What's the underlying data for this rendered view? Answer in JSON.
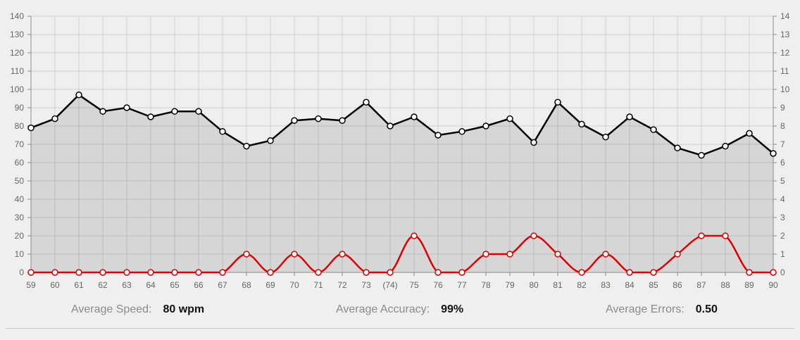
{
  "chart_data": {
    "type": "line",
    "x": [
      "59",
      "60",
      "61",
      "62",
      "63",
      "64",
      "65",
      "66",
      "67",
      "68",
      "69",
      "70",
      "71",
      "72",
      "73",
      "(74)",
      "75",
      "76",
      "77",
      "78",
      "79",
      "80",
      "81",
      "82",
      "83",
      "84",
      "85",
      "86",
      "87",
      "88",
      "89",
      "90"
    ],
    "left_axis": {
      "ylim": [
        0,
        140
      ],
      "ticks": [
        0,
        10,
        20,
        30,
        40,
        50,
        60,
        70,
        80,
        90,
        100,
        110,
        120,
        130,
        140
      ]
    },
    "right_axis": {
      "ylim": [
        0,
        14
      ],
      "ticks": [
        0,
        1,
        2,
        3,
        4,
        5,
        6,
        7,
        8,
        9,
        10,
        11,
        12,
        13,
        14
      ]
    },
    "series": [
      {
        "values": [
          79,
          84,
          97,
          88,
          90,
          85,
          88,
          88,
          77,
          69,
          72,
          83,
          84,
          83,
          93,
          80,
          85,
          75,
          77,
          80,
          84,
          71,
          93,
          81,
          74,
          85,
          78,
          68,
          64,
          69,
          76,
          65
        ],
        "axis": "left",
        "color": "#000000",
        "fill": "#d6d6d6",
        "smooth": false
      },
      {
        "values": [
          0,
          0,
          0,
          0,
          0,
          0,
          0,
          0,
          0,
          1,
          0,
          1,
          0,
          1,
          0,
          0,
          2,
          0,
          0,
          1,
          1,
          2,
          1,
          0,
          1,
          0,
          0,
          1,
          2,
          2,
          0,
          0
        ],
        "axis": "right",
        "color": "#dd0000",
        "smooth": true
      }
    ],
    "grid": true
  },
  "stats": {
    "speed_label": "Average Speed:",
    "speed_value": "80 wpm",
    "accuracy_label": "Average Accuracy:",
    "accuracy_value": "99%",
    "errors_label": "Average Errors:",
    "errors_value": "0.50"
  }
}
